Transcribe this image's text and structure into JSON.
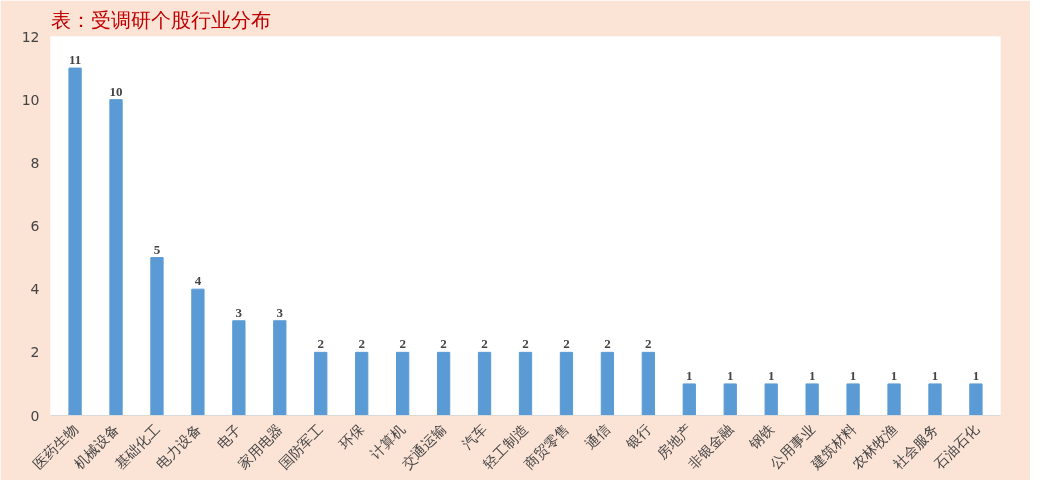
{
  "chart_data": {
    "type": "bar",
    "title": "表：受调研个股行业分布",
    "categories": [
      "医药生物",
      "机械设备",
      "基础化工",
      "电力设备",
      "电子",
      "家用电器",
      "国防军工",
      "环保",
      "计算机",
      "交通运输",
      "汽车",
      "轻工制造",
      "商贸零售",
      "通信",
      "银行",
      "房地产",
      "非银金融",
      "钢铁",
      "公用事业",
      "建筑材料",
      "农林牧渔",
      "社会服务",
      "石油石化"
    ],
    "values": [
      11,
      10,
      5,
      4,
      3,
      3,
      2,
      2,
      2,
      2,
      2,
      2,
      2,
      2,
      2,
      1,
      1,
      1,
      1,
      1,
      1,
      1,
      1
    ],
    "color": "#5b9bd5",
    "ylim": [
      0,
      12
    ],
    "yticks": [
      0,
      2,
      4,
      6,
      8,
      10,
      12
    ],
    "data_labels": true
  }
}
